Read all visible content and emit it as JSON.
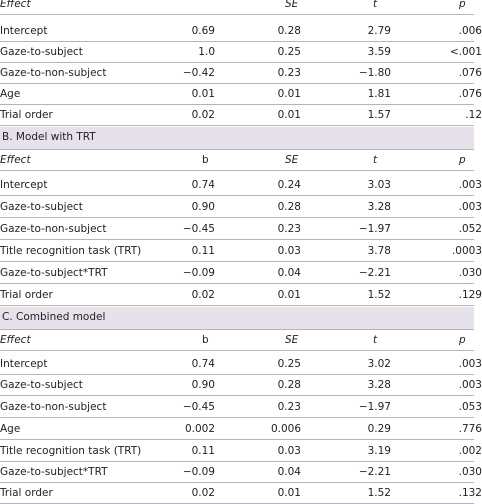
{
  "tables": [
    {
      "section_title": "",
      "header": {
        "effect": "Effect",
        "b": "",
        "se": "SE",
        "t": "t",
        "p": "p"
      },
      "rows": [
        {
          "effect": "Intercept",
          "b": "0.69",
          "se": "0.28",
          "t": "2.79",
          "p": ".006"
        },
        {
          "effect": "Gaze-to-subject",
          "b": "1.0",
          "se": "0.25",
          "t": "3.59",
          "p": "<.001"
        },
        {
          "effect": "Gaze-to-non-subject",
          "b": "−0.42",
          "se": "0.23",
          "t": "−1.80",
          "p": ".076"
        },
        {
          "effect": "Age",
          "b": "0.01",
          "se": "0.01",
          "t": "1.81",
          "p": ".076"
        },
        {
          "effect": "Trial order",
          "b": "0.02",
          "se": "0.01",
          "t": "1.57",
          "p": ".12"
        }
      ]
    },
    {
      "section_title": "B. Model with TRT",
      "header": {
        "effect": "Effect",
        "b": "b",
        "se": "SE",
        "t": "t",
        "p": "p"
      },
      "rows": [
        {
          "effect": "Intercept",
          "b": "0.74",
          "se": "0.24",
          "t": "3.03",
          "p": ".003"
        },
        {
          "effect": "Gaze-to-subject",
          "b": "0.90",
          "se": "0.28",
          "t": "3.28",
          "p": ".003"
        },
        {
          "effect": "Gaze-to-non-subject",
          "b": "−0.45",
          "se": "0.23",
          "t": "−1.97",
          "p": ".052"
        },
        {
          "effect": "Title recognition task (TRT)",
          "b": "0.11",
          "se": "0.03",
          "t": "3.78",
          "p": ".0003"
        },
        {
          "effect": "Gaze-to-subject*TRT",
          "b": "−0.09",
          "se": "0.04",
          "t": "−2.21",
          "p": ".030"
        },
        {
          "effect": "Trial order",
          "b": "0.02",
          "se": "0.01",
          "t": "1.52",
          "p": ".129"
        }
      ]
    },
    {
      "section_title": "C. Combined model",
      "header": {
        "effect": "Effect",
        "b": "b",
        "se": "SE",
        "t": "t",
        "p": "p"
      },
      "rows": [
        {
          "effect": "Intercept",
          "b": "0.74",
          "se": "0.25",
          "t": "3.02",
          "p": ".003"
        },
        {
          "effect": "Gaze-to-subject",
          "b": "0.90",
          "se": "0.28",
          "t": "3.28",
          "p": ".003"
        },
        {
          "effect": "Gaze-to-non-subject",
          "b": "−0.45",
          "se": "0.23",
          "t": "−1.97",
          "p": ".053"
        },
        {
          "effect": "Age",
          "b": "0.002",
          "se": "0.006",
          "t": "0.29",
          "p": ".776"
        },
        {
          "effect": "Title recognition task (TRT)",
          "b": "0.11",
          "se": "0.03",
          "t": "3.19",
          "p": ".002"
        },
        {
          "effect": "Gaze-to-subject*TRT",
          "b": "−0.09",
          "se": "0.04",
          "t": "−2.21",
          "p": ".030"
        },
        {
          "effect": "Trial order",
          "b": "0.02",
          "se": "0.01",
          "t": "1.52",
          "p": ".132"
        }
      ]
    }
  ]
}
